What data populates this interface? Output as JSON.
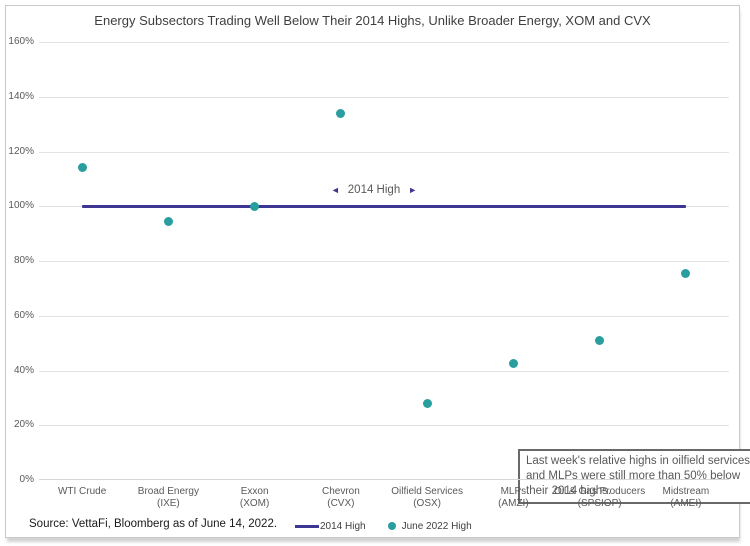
{
  "chart_data": {
    "type": "scatter",
    "title": "Energy Subsectors Trading Well Below Their 2014 Highs, Unlike Broader Energy, XOM and CVX",
    "categories": [
      {
        "name": "WTI Crude",
        "ticker": ""
      },
      {
        "name": "Broad Energy",
        "ticker": "(IXE)"
      },
      {
        "name": "Exxon",
        "ticker": "(XOM)"
      },
      {
        "name": "Chevron",
        "ticker": "(CVX)"
      },
      {
        "name": "Oilfield Services",
        "ticker": "(OSX)"
      },
      {
        "name": "MLPs",
        "ticker": "(AMZI)"
      },
      {
        "name": "Oil & Gas Producers",
        "ticker": "(SPSIOP)"
      },
      {
        "name": "Midstream",
        "ticker": "(AMEI)"
      }
    ],
    "series": [
      {
        "name": "2014 High",
        "type": "line",
        "value": 100,
        "color": "#3e3693"
      },
      {
        "name": "June 2022 High",
        "type": "scatter",
        "color": "#2a9d9e",
        "values": [
          114,
          94.5,
          100,
          134,
          28,
          42.5,
          51,
          75.5
        ]
      }
    ],
    "ylim": [
      0,
      160
    ],
    "yticks": [
      {
        "value": 0,
        "label": "0%"
      },
      {
        "value": 20,
        "label": "20%"
      },
      {
        "value": 40,
        "label": "40%"
      },
      {
        "value": 60,
        "label": "60%"
      },
      {
        "value": 80,
        "label": "80%"
      },
      {
        "value": 100,
        "label": "100%"
      },
      {
        "value": 120,
        "label": "120%"
      },
      {
        "value": 140,
        "label": "140%"
      },
      {
        "value": 160,
        "label": "160%"
      }
    ],
    "grid": true,
    "legend_position": "bottom"
  },
  "annotations": {
    "line_label": {
      "arrow_left": "◄",
      "text": "2014 High",
      "arrow_right": "►",
      "arrow_color": "#3e3693"
    },
    "callout": {
      "text": "Last week's relative highs in oilfield services and MLPs were still more than 50% below their 2014 highs."
    }
  },
  "legend": {
    "items": [
      {
        "label": "2014 High",
        "marker": "line",
        "color": "#3e3693"
      },
      {
        "label": "June 2022 High",
        "marker": "dot",
        "color": "#2a9d9e"
      }
    ]
  },
  "footer": {
    "source": "Source: VettaFi, Bloomberg as of June 14, 2022."
  },
  "colors": {
    "teal": "#2a9d9e",
    "indigo": "#3e3693",
    "gridline": "#e3e3e3",
    "axis_text": "#595959",
    "title_text": "#3f3f3f"
  }
}
